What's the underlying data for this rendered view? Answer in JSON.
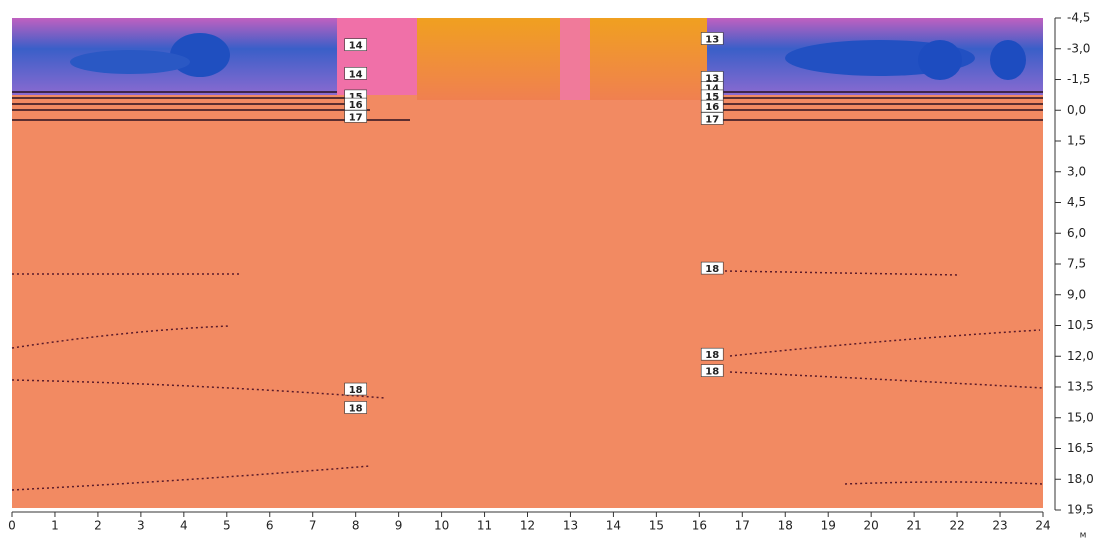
{
  "chart_data": {
    "type": "contour",
    "x_label": "м",
    "xlim": [
      0,
      24
    ],
    "xticks": [
      0,
      1,
      2,
      3,
      4,
      5,
      6,
      7,
      8,
      9,
      10,
      11,
      12,
      13,
      14,
      15,
      16,
      17,
      18,
      19,
      20,
      21,
      22,
      23,
      24
    ],
    "ylim": [
      -4.5,
      19.5
    ],
    "y_inverted": true,
    "yticks": [
      {
        "value": -4.5,
        "label": "-4,5"
      },
      {
        "value": -3,
        "label": "-3,0"
      },
      {
        "value": -1.5,
        "label": "-1,5"
      },
      {
        "value": 0,
        "label": "0,0"
      },
      {
        "value": 1.5,
        "label": "1,5"
      },
      {
        "value": 3,
        "label": "3,0"
      },
      {
        "value": 4.5,
        "label": "4,5"
      },
      {
        "value": 6,
        "label": "6,0"
      },
      {
        "value": 7.5,
        "label": "7,5"
      },
      {
        "value": 9,
        "label": "9,0"
      },
      {
        "value": 10.5,
        "label": "10,5"
      },
      {
        "value": 12,
        "label": "12,0"
      },
      {
        "value": 13.5,
        "label": "13,5"
      },
      {
        "value": 15,
        "label": "15,0"
      },
      {
        "value": 16.5,
        "label": "16,5"
      },
      {
        "value": 18,
        "label": "18,0"
      },
      {
        "value": 19.5,
        "label": "19,5"
      }
    ],
    "annotations": [
      {
        "text": "14",
        "x": 8.0,
        "y": -3.2
      },
      {
        "text": "14",
        "x": 8.0,
        "y": -1.8
      },
      {
        "text": "15",
        "x": 8.0,
        "y": -0.7
      },
      {
        "text": "16",
        "x": 8.0,
        "y": -0.3
      },
      {
        "text": "17",
        "x": 8.0,
        "y": 0.3
      },
      {
        "text": "13",
        "x": 16.3,
        "y": -3.5
      },
      {
        "text": "13",
        "x": 16.3,
        "y": -1.6
      },
      {
        "text": "14",
        "x": 16.3,
        "y": -1.1
      },
      {
        "text": "15",
        "x": 16.3,
        "y": -0.7
      },
      {
        "text": "16",
        "x": 16.3,
        "y": -0.2
      },
      {
        "text": "17",
        "x": 16.3,
        "y": 0.4
      },
      {
        "text": "18",
        "x": 16.3,
        "y": 7.7
      },
      {
        "text": "18",
        "x": 16.3,
        "y": 11.9
      },
      {
        "text": "18",
        "x": 16.3,
        "y": 12.7
      },
      {
        "text": "18",
        "x": 8.0,
        "y": 13.6
      },
      {
        "text": "18",
        "x": 8.0,
        "y": 14.5
      }
    ]
  }
}
